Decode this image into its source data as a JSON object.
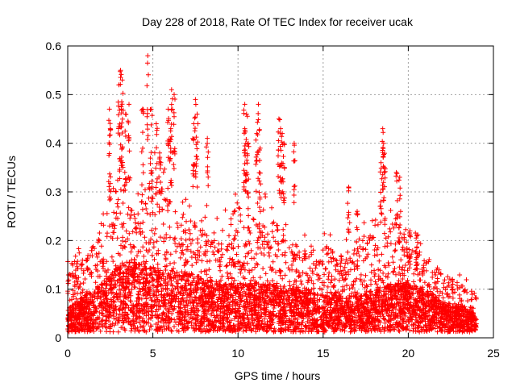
{
  "chart_data": {
    "type": "scatter",
    "title": "Day 228 of 2018, Rate Of TEC Index for receiver ucak",
    "xlabel": "GPS time / hours",
    "ylabel": "ROTI / TECUs",
    "xlim": [
      0,
      25
    ],
    "ylim": [
      0,
      0.6
    ],
    "xticks": [
      0,
      5,
      10,
      15,
      20,
      25
    ],
    "yticks": [
      0,
      0.1,
      0.2,
      0.3,
      0.4,
      0.5,
      0.6
    ],
    "grid": true,
    "marker": "+",
    "series_color": "#ff0000",
    "x_range_of_data": [
      0,
      24
    ],
    "hourly_envelope": {
      "hours": [
        0,
        1,
        2,
        3,
        4,
        5,
        6,
        7,
        8,
        9,
        10,
        11,
        12,
        13,
        14,
        15,
        16,
        17,
        18,
        19,
        20,
        21,
        22,
        23,
        24
      ],
      "typical": [
        0.04,
        0.06,
        0.08,
        0.11,
        0.12,
        0.11,
        0.1,
        0.1,
        0.09,
        0.08,
        0.08,
        0.08,
        0.08,
        0.07,
        0.07,
        0.06,
        0.06,
        0.06,
        0.07,
        0.08,
        0.08,
        0.07,
        0.05,
        0.04,
        0.03
      ],
      "upper": [
        0.21,
        0.19,
        0.26,
        0.4,
        0.32,
        0.4,
        0.33,
        0.3,
        0.25,
        0.26,
        0.32,
        0.29,
        0.33,
        0.23,
        0.22,
        0.23,
        0.2,
        0.22,
        0.3,
        0.28,
        0.23,
        0.2,
        0.16,
        0.13,
        0.11
      ]
    },
    "spikes": [
      {
        "x": 2.45,
        "y": 0.47
      },
      {
        "x": 2.5,
        "y": 0.43
      },
      {
        "x": 3.0,
        "y": 0.52
      },
      {
        "x": 3.1,
        "y": 0.55
      },
      {
        "x": 3.2,
        "y": 0.53
      },
      {
        "x": 3.15,
        "y": 0.47
      },
      {
        "x": 3.4,
        "y": 0.46
      },
      {
        "x": 3.6,
        "y": 0.48
      },
      {
        "x": 4.4,
        "y": 0.47
      },
      {
        "x": 4.7,
        "y": 0.58
      },
      {
        "x": 4.9,
        "y": 0.47
      },
      {
        "x": 5.2,
        "y": 0.44
      },
      {
        "x": 5.4,
        "y": 0.38
      },
      {
        "x": 5.9,
        "y": 0.47
      },
      {
        "x": 6.1,
        "y": 0.51
      },
      {
        "x": 6.25,
        "y": 0.5
      },
      {
        "x": 6.05,
        "y": 0.43
      },
      {
        "x": 7.5,
        "y": 0.49
      },
      {
        "x": 7.6,
        "y": 0.46
      },
      {
        "x": 7.4,
        "y": 0.44
      },
      {
        "x": 8.2,
        "y": 0.41
      },
      {
        "x": 10.4,
        "y": 0.48
      },
      {
        "x": 10.5,
        "y": 0.46
      },
      {
        "x": 10.4,
        "y": 0.43
      },
      {
        "x": 10.6,
        "y": 0.4
      },
      {
        "x": 11.2,
        "y": 0.48
      },
      {
        "x": 11.1,
        "y": 0.42
      },
      {
        "x": 11.3,
        "y": 0.39
      },
      {
        "x": 12.4,
        "y": 0.45
      },
      {
        "x": 12.5,
        "y": 0.43
      },
      {
        "x": 12.6,
        "y": 0.42
      },
      {
        "x": 12.7,
        "y": 0.4
      },
      {
        "x": 13.3,
        "y": 0.4
      },
      {
        "x": 16.5,
        "y": 0.31
      },
      {
        "x": 17.0,
        "y": 0.26
      },
      {
        "x": 18.5,
        "y": 0.43
      },
      {
        "x": 18.55,
        "y": 0.4
      },
      {
        "x": 18.4,
        "y": 0.36
      },
      {
        "x": 18.6,
        "y": 0.35
      },
      {
        "x": 19.3,
        "y": 0.34
      },
      {
        "x": 19.5,
        "y": 0.33
      },
      {
        "x": 20.1,
        "y": 0.22
      },
      {
        "x": 20.5,
        "y": 0.21
      }
    ]
  }
}
